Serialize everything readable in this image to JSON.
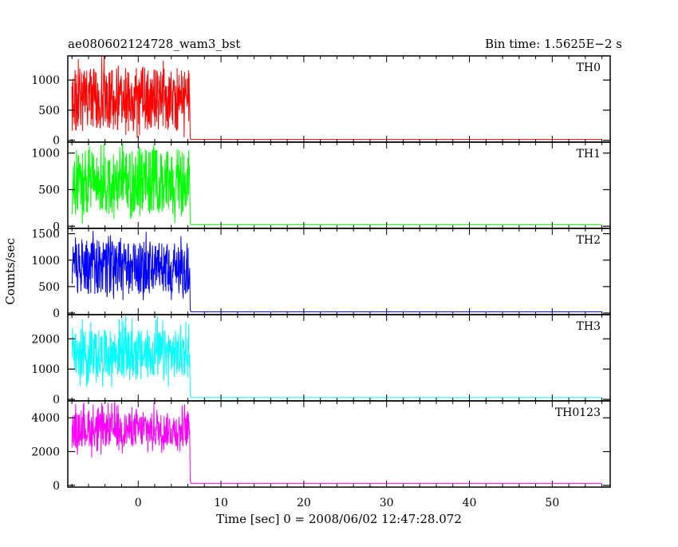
{
  "chart_data": {
    "type": "line",
    "title": "ae080602124728_wam3_bst",
    "bin_time_text": "Bin time: 1.5625E−2 s",
    "xlabel": "Time [sec] 0 = 2008/06/02 12:47:28.072",
    "ylabel": "Counts/sec",
    "xlim": [
      -8.5,
      57
    ],
    "x_ticks": [
      0,
      10,
      20,
      30,
      40,
      50
    ],
    "burst_interval": [
      -8.0,
      6.2
    ],
    "panels": [
      {
        "name": "TH0",
        "color": "#ff0000",
        "ylim": [
          -30,
          1400
        ],
        "y_ticks": [
          0,
          500,
          1000
        ],
        "burst_range": [
          0,
          1400
        ],
        "burst_core": [
          150,
          1200
        ],
        "background_level": 15
      },
      {
        "name": "TH1",
        "color": "#00ff00",
        "ylim": [
          -30,
          1150
        ],
        "y_ticks": [
          0,
          500,
          1000
        ],
        "burst_range": [
          0,
          1150
        ],
        "burst_core": [
          150,
          1050
        ],
        "background_level": 20
      },
      {
        "name": "TH2",
        "color": "#0000ff",
        "ylim": [
          -30,
          1600
        ],
        "y_ticks": [
          0,
          500,
          1000,
          1500
        ],
        "burst_range": [
          200,
          1600
        ],
        "burst_core": [
          350,
          1350
        ],
        "background_level": 25
      },
      {
        "name": "TH3",
        "color": "#00ffff",
        "ylim": [
          -50,
          2800
        ],
        "y_ticks": [
          0,
          1000,
          2000
        ],
        "burst_range": [
          400,
          2800
        ],
        "burst_core": [
          700,
          2300
        ],
        "background_level": 60
      },
      {
        "name": "TH0123",
        "color": "#ff00ff",
        "ylim": [
          -100,
          5000
        ],
        "y_ticks": [
          0,
          2000,
          4000
        ],
        "burst_range": [
          1600,
          5000
        ],
        "burst_core": [
          2300,
          4300
        ],
        "background_level": 120
      }
    ]
  }
}
